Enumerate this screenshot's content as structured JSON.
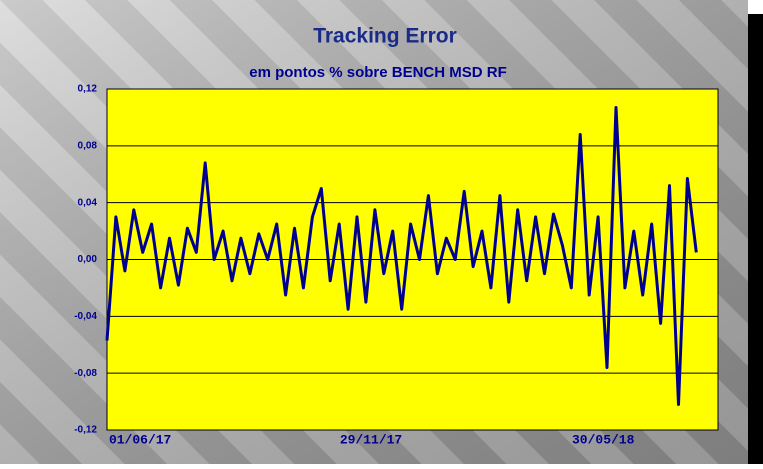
{
  "chart_data": {
    "type": "line",
    "title": "Tracking Error",
    "subtitle": "em pontos % sobre BENCH MSD RF",
    "x": [
      "06/05/17",
      "13/05/17",
      "20/05/17",
      "27/05/17",
      "03/06/17",
      "10/06/17",
      "17/06/17",
      "24/06/17",
      "01/07/17",
      "08/07/17",
      "15/07/17",
      "22/07/17",
      "29/07/17",
      "05/08/17",
      "12/08/17",
      "19/08/17",
      "26/08/17",
      "02/09/17",
      "09/09/17",
      "16/09/17",
      "23/09/17",
      "30/09/17",
      "07/10/17",
      "14/10/17",
      "21/10/17",
      "28/10/17",
      "04/11/17",
      "11/11/17",
      "18/11/17",
      "25/11/17",
      "02/12/17",
      "09/12/17",
      "16/12/17",
      "23/12/17",
      "30/12/17",
      "06/01/18",
      "13/01/18",
      "20/01/18",
      "27/01/18",
      "03/02/18",
      "10/02/18",
      "17/02/18",
      "24/02/18",
      "03/03/18",
      "10/03/18",
      "17/03/18",
      "24/03/18",
      "31/03/18",
      "07/04/18",
      "14/04/18",
      "21/04/18",
      "28/04/18",
      "05/05/18",
      "12/05/18",
      "19/05/18",
      "26/05/18",
      "02/06/18",
      "09/06/18",
      "16/06/18",
      "23/06/18",
      "30/06/18",
      "07/07/18",
      "14/07/18",
      "21/07/18",
      "28/07/18",
      "04/08/18",
      "11/08/18"
    ],
    "series": [
      {
        "name": "Tracking Error",
        "color": "#000090",
        "values": [
          -0.057,
          0.03,
          -0.008,
          0.035,
          0.005,
          0.025,
          -0.02,
          0.015,
          -0.018,
          0.022,
          0.005,
          0.068,
          0.0,
          0.02,
          -0.015,
          0.015,
          -0.01,
          0.018,
          0.0,
          0.025,
          -0.025,
          0.022,
          -0.02,
          0.03,
          0.05,
          -0.015,
          0.025,
          -0.035,
          0.03,
          -0.03,
          0.035,
          -0.01,
          0.02,
          -0.035,
          0.025,
          0.0,
          0.045,
          -0.01,
          0.015,
          0.0,
          0.048,
          -0.005,
          0.02,
          -0.02,
          0.045,
          -0.03,
          0.035,
          -0.015,
          0.03,
          -0.01,
          0.032,
          0.01,
          -0.02,
          0.088,
          -0.025,
          0.03,
          -0.076,
          0.107,
          -0.02,
          0.02,
          -0.025,
          0.025,
          -0.045,
          0.052,
          -0.102,
          0.057,
          0.005
        ]
      }
    ],
    "xlim": [
      "06/05/17",
      "28/08/18"
    ],
    "xticks": [
      "01/06/17",
      "29/11/17",
      "30/05/18"
    ],
    "ylim": [
      -0.12,
      0.12
    ],
    "yticks": [
      {
        "value": -0.12,
        "label": "-0,12"
      },
      {
        "value": -0.08,
        "label": "-0,08"
      },
      {
        "value": -0.04,
        "label": "-0,04"
      },
      {
        "value": 0,
        "label": "0,00"
      },
      {
        "value": 0.04,
        "label": "0,04"
      },
      {
        "value": 0.08,
        "label": "0,08"
      },
      {
        "value": 0.12,
        "label": "0,12"
      }
    ],
    "grid": true,
    "plot_color": "#ffff00"
  }
}
